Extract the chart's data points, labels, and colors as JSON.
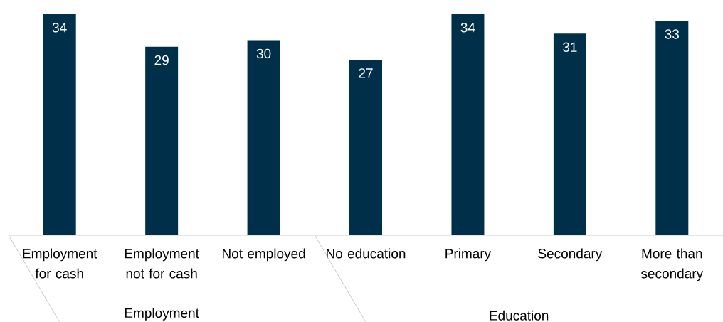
{
  "chart_data": {
    "type": "bar",
    "categories": [
      "Employment for cash",
      "Employment not for cash",
      "Not employed",
      "No education",
      "Primary",
      "Secondary",
      "More than secondary"
    ],
    "values": [
      34,
      29,
      30,
      27,
      34,
      31,
      33
    ],
    "color": "#002f4a",
    "data_labels": true,
    "annotations": [
      "Employment",
      "Education"
    ]
  }
}
